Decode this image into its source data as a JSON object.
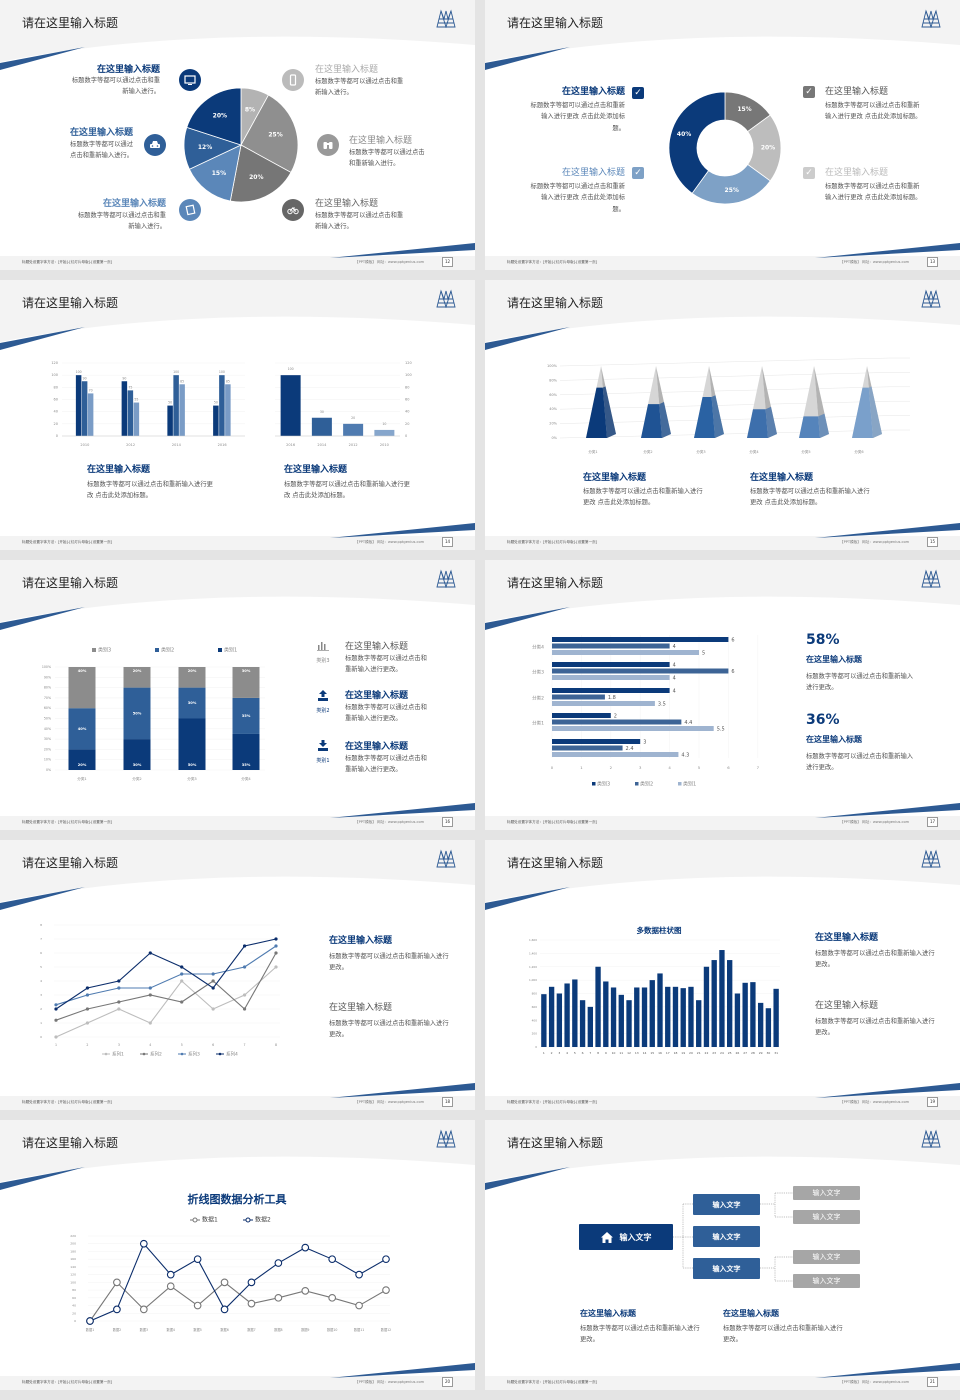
{
  "footer": {
    "left": "标题处设置字体方法：[开始]-[幻灯片母版]-[设置第一页]",
    "right": "【PPT模板】 网址：www.pptgenius.com"
  },
  "slides": [
    {
      "title": "请在这里输入标题",
      "page": "12",
      "icons": [
        "monitor-icon",
        "car-icon",
        "book-icon",
        "phone-icon",
        "binoculars-icon",
        "bicycle-icon"
      ],
      "items": [
        {
          "title": "在这里输入标题",
          "desc": "标题数字等都可以通过点击和重新输入进行。"
        },
        {
          "title": "在这里输入标题",
          "desc": "标题数字等都可以通过点击和重新输入进行。"
        },
        {
          "title": "在这里输入标题",
          "desc": "标题数字等都可以通过点击和重新输入进行。"
        },
        {
          "title": "在这里输入标题",
          "desc": "标题数字等都可以通过点击和重新输入进行。"
        },
        {
          "title": "在这里输入标题",
          "desc": "标题数字等都可以通过点击和重新输入进行。"
        },
        {
          "title": "在这里输入标题",
          "desc": "标题数字等都可以通过点击和重新输入进行。"
        }
      ]
    },
    {
      "title": "请在这里输入标题",
      "page": "13",
      "items": [
        {
          "title": "在这里输入标题",
          "desc": "标题数字等都可以通过点击和重新输入进行更改 点击此处添加标题。"
        },
        {
          "title": "在这里输入标题",
          "desc": "标题数字等都可以通过点击和重新输入进行更改 点击此处添加标题。"
        },
        {
          "title": "在这里输入标题",
          "desc": "标题数字等都可以通过点击和重新输入进行更改 点击此处添加标题。"
        },
        {
          "title": "在这里输入标题",
          "desc": "标题数字等都可以通过点击和重新输入进行更改 点击此处添加标题。"
        }
      ]
    },
    {
      "title": "请在这里输入标题",
      "page": "14",
      "items": [
        {
          "title": "在这里输入标题",
          "desc": "标题数字等都可以通过点击和重新输入进行更改 点击此处添加标题。"
        },
        {
          "title": "在这里输入标题",
          "desc": "标题数字等都可以通过点击和重新输入进行更改 点击此处添加标题。"
        }
      ]
    },
    {
      "title": "请在这里输入标题",
      "page": "15",
      "items": [
        {
          "title": "在这里输入标题",
          "desc": "标题数字等都可以通过点击和重新输入进行更改 点击此处添加标题。"
        },
        {
          "title": "在这里输入标题",
          "desc": "标题数字等都可以通过点击和重新输入进行更改 点击此处添加标题。"
        }
      ]
    },
    {
      "title": "请在这里输入标题",
      "page": "16",
      "items": [
        {
          "title": "在这里输入标题",
          "desc": "标题数字等都可以通过点击和重新输入进行更改。",
          "icon_label": "类别3",
          "icon": "bar-chart-icon"
        },
        {
          "title": "在这里输入标题",
          "desc": "标题数字等都可以通过点击和重新输入进行更改。",
          "icon_label": "类别2",
          "icon": "upload-icon"
        },
        {
          "title": "在这里输入标题",
          "desc": "标题数字等都可以通过点击和重新输入进行更改。",
          "icon_label": "类别1",
          "icon": "download-icon"
        }
      ]
    },
    {
      "title": "请在这里输入标题",
      "page": "17",
      "stats": [
        {
          "value": "58%",
          "title": "在这里输入标题",
          "desc": "标题数字等都可以通过点击和重新输入进行更改。"
        },
        {
          "value": "36%",
          "title": "在这里输入标题",
          "desc": "标题数字等都可以通过点击和重新输入进行更改。"
        }
      ]
    },
    {
      "title": "请在这里输入标题",
      "page": "18",
      "items": [
        {
          "title": "在这里输入标题",
          "desc": "标题数字等都可以通过点击和重新输入进行更改。"
        },
        {
          "title": "在这里输入标题",
          "desc": "标题数字等都可以通过点击和重新输入进行更改。"
        }
      ]
    },
    {
      "title": "请在这里输入标题",
      "page": "19",
      "items": [
        {
          "title": "在这里输入标题",
          "desc": "标题数字等都可以通过点击和重新输入进行更改。"
        },
        {
          "title": "在这里输入标题",
          "desc": "标题数字等都可以通过点击和重新输入进行更改。"
        }
      ]
    },
    {
      "title": "请在这里输入标题",
      "page": "20"
    },
    {
      "title": "请在这里输入标题",
      "page": "21",
      "root": "输入文字",
      "branches": [
        "输入文字",
        "输入文字",
        "输入文字"
      ],
      "leaves": [
        "输入文字",
        "输入文字",
        "输入文字",
        "输入文字"
      ],
      "items": [
        {
          "title": "在这里输入标题",
          "desc": "标题数字等都可以通过点击和重新输入进行更改。"
        },
        {
          "title": "在这里输入标题",
          "desc": "标题数字等都可以通过点击和重新输入进行更改。"
        }
      ]
    }
  ],
  "colors": {
    "navy": "#0b3a7a",
    "blue": "#2f5f98",
    "light_blue": "#7a9cc6",
    "gray": "#8c8c8c",
    "accent_line": "#2d5a93"
  },
  "chart_data": [
    {
      "type": "pie",
      "values": [
        8,
        25,
        20,
        15,
        12,
        20
      ],
      "labels": [
        "8%",
        "25%",
        "20%",
        "15%",
        "12%",
        "20%"
      ],
      "colors": [
        "#b3b3b3",
        "#8f8f8f",
        "#767676",
        "#5b87b9",
        "#2f5f98",
        "#0b3a7a"
      ]
    },
    {
      "type": "pie",
      "donut": true,
      "values": [
        15,
        20,
        25,
        40
      ],
      "labels": [
        "15%",
        "20%",
        "25%",
        "40%"
      ],
      "colors": [
        "#777777",
        "#bdbdbd",
        "#7ea1c6",
        "#0b3a7a"
      ]
    },
    {
      "type": "bar",
      "categories": [
        "2010",
        "2012",
        "2014",
        "2016"
      ],
      "ylim": [
        0,
        120
      ],
      "yticks": [
        "0",
        "20",
        "40",
        "60",
        "80",
        "100",
        "120"
      ],
      "series": [
        {
          "values": [
            100,
            90,
            50,
            50
          ],
          "color": "#0b3a7a"
        },
        {
          "values": [
            90,
            75,
            100,
            100
          ],
          "color": "#2f5f98"
        },
        {
          "values": [
            70,
            55,
            85,
            85
          ],
          "color": "#7a9cc6"
        }
      ]
    },
    {
      "type": "bar",
      "categories": [
        "2016",
        "2014",
        "2012",
        "2010"
      ],
      "values": [
        100,
        30,
        20,
        10
      ],
      "ylim": [
        0,
        120
      ],
      "yticks": [
        "0",
        "20",
        "40",
        "60",
        "80",
        "100",
        "120"
      ],
      "colors": [
        "#0b3a7a",
        "#2f5f98",
        "#4f7bb0",
        "#86a6cc"
      ],
      "axis": "right"
    },
    {
      "type": "bar",
      "style": "3d-pyramid",
      "categories": [
        "分类1",
        "分类2",
        "分类3",
        "分类4",
        "分类5",
        "分类6"
      ],
      "values": [
        70,
        47,
        57,
        40,
        30,
        70
      ],
      "ylim": [
        0,
        100
      ],
      "yticks": [
        "0%",
        "20%",
        "40%",
        "60%",
        "80%",
        "100%"
      ],
      "colors": [
        "#0b3a7a",
        "#1f5394",
        "#2a62a3",
        "#3d6fac",
        "#5584bb",
        "#7aa0cb"
      ]
    },
    {
      "type": "bar",
      "stacked": true,
      "categories": [
        "分类1",
        "分类2",
        "分类3",
        "分类4"
      ],
      "ylim": [
        0,
        100
      ],
      "yticks": [
        "0%",
        "10%",
        "20%",
        "30%",
        "40%",
        "50%",
        "60%",
        "70%",
        "80%",
        "90%",
        "100%"
      ],
      "legend": "top",
      "series": [
        {
          "name": "类别1",
          "values": [
            20,
            30,
            50,
            35
          ],
          "labels": [
            "20%",
            "30%",
            "50%",
            "35%"
          ],
          "color": "#0b3a7a"
        },
        {
          "name": "类别2",
          "values": [
            40,
            50,
            30,
            35
          ],
          "labels": [
            "40%",
            "50%",
            "30%",
            "35%"
          ],
          "color": "#2f5f98"
        },
        {
          "name": "类别3",
          "values": [
            40,
            20,
            20,
            30
          ],
          "labels": [
            "40%",
            "20%",
            "20%",
            "30%"
          ],
          "color": "#8c8c8c"
        }
      ]
    },
    {
      "type": "bar",
      "orientation": "horizontal",
      "categories": [
        "分类4",
        "分类3",
        "分类2",
        "分类1",
        ""
      ],
      "xlim": [
        0,
        7
      ],
      "xticks": [
        "0",
        "1",
        "2",
        "3",
        "4",
        "5",
        "6",
        "7"
      ],
      "legend": "bottom",
      "series": [
        {
          "name": "类别3",
          "values": [
            6,
            4,
            4,
            2,
            3
          ],
          "color": "#0b3a7a"
        },
        {
          "name": "类别2",
          "values": [
            4,
            6,
            1.8,
            4.4,
            2.4
          ],
          "color": "#3d6496"
        },
        {
          "name": "类别1",
          "values": [
            5,
            4,
            3.5,
            5.5,
            4.3
          ],
          "color": "#9fb4d0"
        }
      ]
    },
    {
      "type": "line",
      "x": [
        "1",
        "2",
        "3",
        "4",
        "5",
        "6",
        "7",
        "8"
      ],
      "ylim": [
        0,
        8
      ],
      "yticks": [
        "0",
        "1",
        "2",
        "3",
        "4",
        "5",
        "6",
        "7",
        "8"
      ],
      "legend": "bottom",
      "series": [
        {
          "name": "系列1",
          "values": [
            0,
            1,
            2,
            1,
            4,
            2,
            3,
            5
          ],
          "color": "#bdbdbd"
        },
        {
          "name": "系列2",
          "values": [
            1.2,
            2,
            2.5,
            3,
            2.5,
            4,
            2,
            6
          ],
          "color": "#777777"
        },
        {
          "name": "系列3",
          "values": [
            2.3,
            3,
            3.5,
            3.5,
            4.5,
            4.5,
            5,
            6.5
          ],
          "color": "#4f7bb0"
        },
        {
          "name": "系列4",
          "values": [
            2,
            3.5,
            4,
            6,
            5,
            3.5,
            6.5,
            7
          ],
          "color": "#0b2d6b"
        }
      ]
    },
    {
      "type": "bar",
      "title": "多数据柱状图",
      "categories": [
        "1",
        "2",
        "3",
        "4",
        "5",
        "6",
        "7",
        "8",
        "9",
        "10",
        "11",
        "12",
        "13",
        "14",
        "15",
        "16",
        "17",
        "18",
        "19",
        "20",
        "21",
        "22",
        "23",
        "24",
        "25",
        "26",
        "27",
        "28",
        "29",
        "30",
        "31"
      ],
      "values": [
        790,
        900,
        800,
        950,
        1010,
        700,
        600,
        1200,
        980,
        890,
        780,
        700,
        890,
        890,
        1000,
        1100,
        900,
        900,
        880,
        900,
        700,
        1200,
        1300,
        1450,
        1300,
        800,
        960,
        970,
        660,
        580,
        870
      ],
      "ylim": [
        0,
        1600
      ],
      "yticks": [
        "0",
        "200",
        "400",
        "600",
        "800",
        "1,000",
        "1,200",
        "1,400",
        "1,600"
      ],
      "color": "#0b3a7a"
    },
    {
      "type": "line",
      "title": "折线图数据分析工具",
      "categories": [
        "数据1",
        "数据2",
        "数据3",
        "数据4",
        "数据5",
        "数据6",
        "数据7",
        "数据8",
        "数据9",
        "数据10",
        "数据11",
        "数据12"
      ],
      "ylim": [
        0,
        220
      ],
      "yticks": [
        "0",
        "20",
        "40",
        "60",
        "80",
        "100",
        "120",
        "140",
        "160",
        "180",
        "200",
        "220"
      ],
      "legend": "top",
      "series": [
        {
          "name": "数据1",
          "values": [
            0,
            100,
            30,
            90,
            40,
            100,
            45,
            60,
            78,
            60,
            40,
            80
          ],
          "color": "#777777"
        },
        {
          "name": "数据2",
          "values": [
            0,
            30,
            200,
            120,
            160,
            30,
            100,
            150,
            190,
            160,
            120,
            160
          ],
          "color": "#0b2d6b"
        }
      ]
    }
  ]
}
